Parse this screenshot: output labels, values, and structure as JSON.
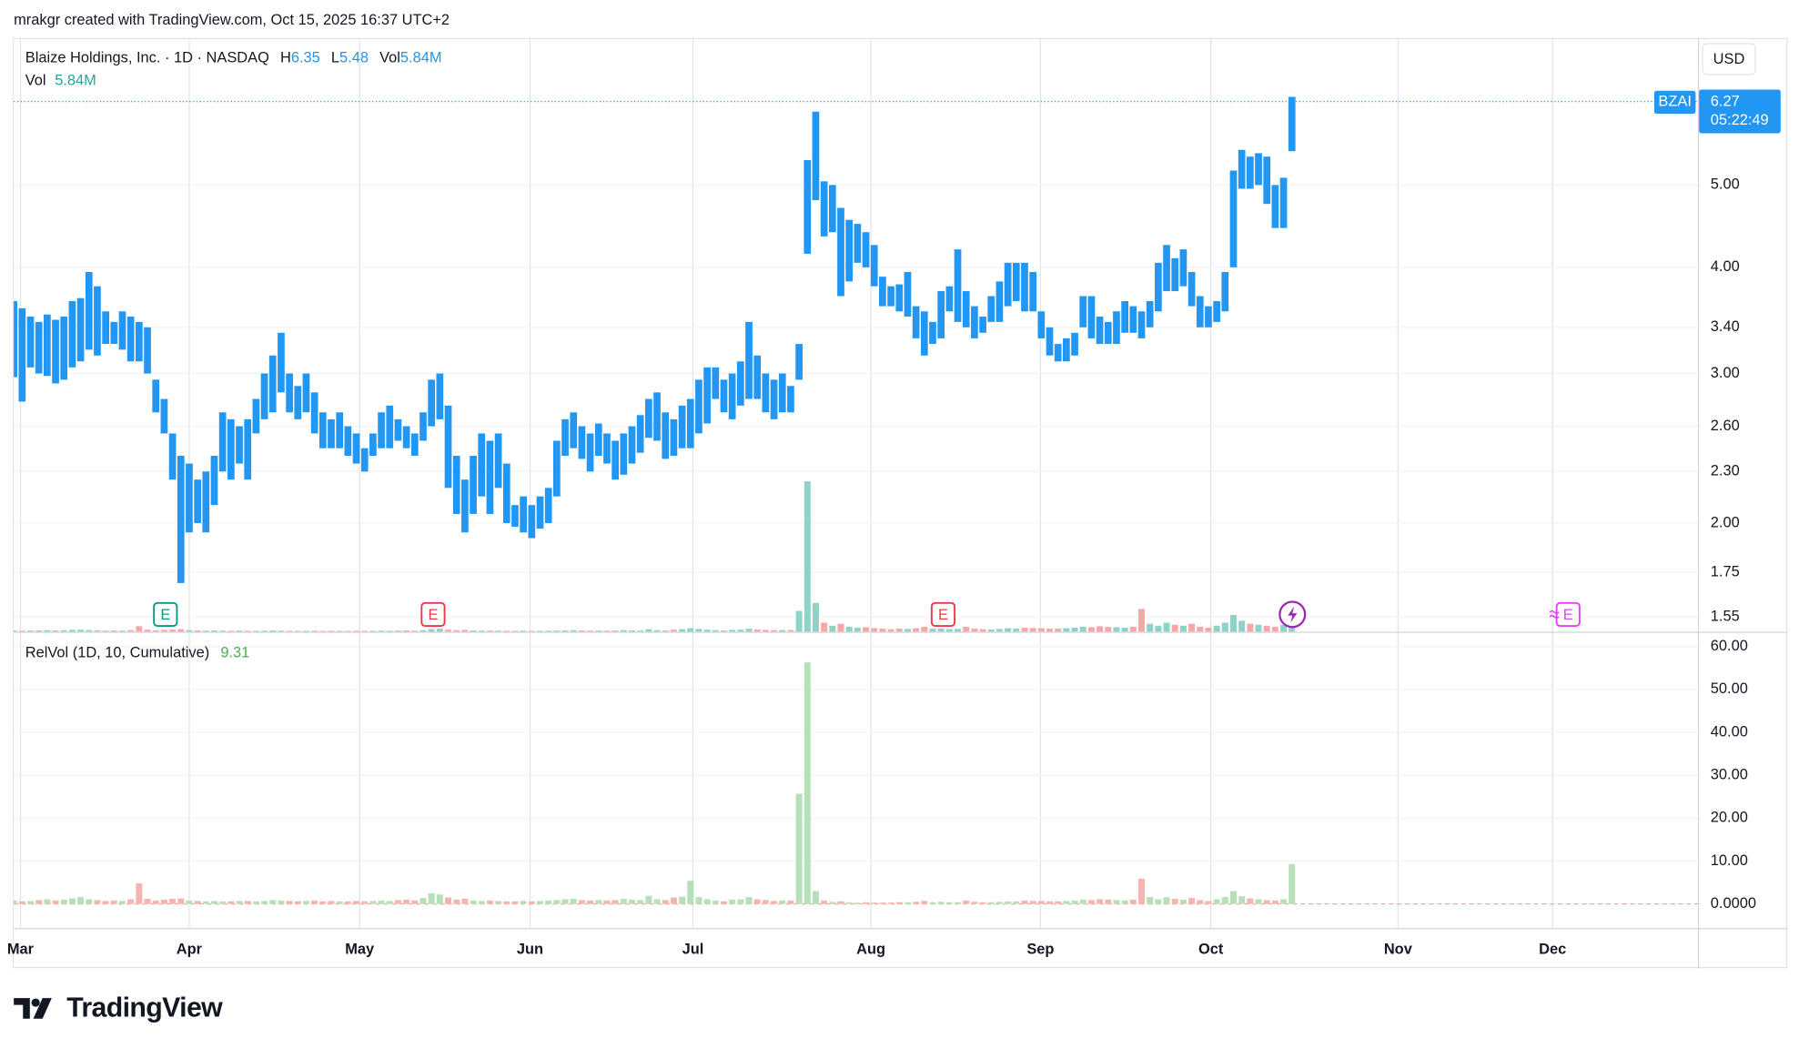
{
  "header": "mrakgr created with TradingView.com, Oct 15, 2025 16:37 UTC+2",
  "brand": "TradingView",
  "chart_data": [
    {
      "type": "range-bar",
      "title": "Blaize Holdings, Inc. · 1D · NASDAQ",
      "log_scale": true,
      "grid": true,
      "color": "#2196f3",
      "currency": "USD",
      "series": [
        {
          "name": "H",
          "values": [
            3.65,
            3.58,
            3.5,
            3.45,
            3.52,
            3.47,
            3.5,
            3.65,
            3.68,
            3.95,
            3.8,
            3.55,
            3.45,
            3.55,
            3.5,
            3.45,
            3.4,
            2.95,
            2.8,
            2.55,
            2.4,
            2.35,
            2.25,
            2.3,
            2.4,
            2.7,
            2.65,
            2.6,
            2.65,
            2.8,
            3.0,
            3.15,
            3.35,
            3.0,
            2.9,
            3.0,
            2.85,
            2.7,
            2.65,
            2.7,
            2.6,
            2.55,
            2.45,
            2.55,
            2.7,
            2.75,
            2.65,
            2.6,
            2.55,
            2.7,
            2.95,
            3.0,
            2.75,
            2.4,
            2.25,
            2.4,
            2.55,
            2.5,
            2.55,
            2.35,
            2.1,
            2.15,
            2.1,
            2.15,
            2.2,
            2.5,
            2.65,
            2.7,
            2.6,
            2.55,
            2.62,
            2.55,
            2.5,
            2.55,
            2.6,
            2.68,
            2.8,
            2.85,
            2.7,
            2.65,
            2.75,
            2.8,
            2.95,
            3.05,
            3.05,
            2.95,
            3.0,
            3.1,
            3.45,
            3.15,
            3.0,
            2.95,
            3.0,
            2.9,
            3.25,
            5.35,
            6.1,
            5.05,
            5.0,
            4.7,
            4.55,
            4.5,
            4.4,
            4.25,
            3.9,
            3.8,
            3.82,
            3.95,
            3.6,
            3.55,
            3.45,
            3.75,
            3.8,
            4.2,
            3.75,
            3.6,
            3.5,
            3.7,
            3.85,
            4.05,
            4.05,
            4.05,
            3.95,
            3.55,
            3.4,
            3.25,
            3.3,
            3.35,
            3.7,
            3.7,
            3.5,
            3.45,
            3.55,
            3.65,
            3.6,
            3.55,
            3.65,
            4.05,
            4.25,
            4.1,
            4.2,
            3.95,
            3.7,
            3.6,
            3.65,
            3.95,
            5.2,
            5.5,
            5.4,
            5.45,
            5.4,
            5.0,
            5.1,
            6.35
          ]
        },
        {
          "name": "L",
          "values": [
            2.97,
            2.78,
            3.05,
            3.0,
            2.98,
            2.92,
            2.95,
            3.05,
            3.1,
            3.2,
            3.15,
            3.25,
            3.25,
            3.2,
            3.1,
            3.1,
            3.0,
            2.7,
            2.55,
            2.25,
            1.7,
            1.95,
            2.0,
            1.95,
            2.1,
            2.3,
            2.25,
            2.35,
            2.25,
            2.55,
            2.65,
            2.7,
            2.85,
            2.7,
            2.65,
            2.7,
            2.55,
            2.45,
            2.45,
            2.45,
            2.4,
            2.35,
            2.3,
            2.4,
            2.45,
            2.45,
            2.5,
            2.45,
            2.4,
            2.5,
            2.6,
            2.65,
            2.2,
            2.05,
            1.95,
            2.05,
            2.15,
            2.05,
            2.2,
            2.0,
            1.98,
            1.95,
            1.92,
            1.97,
            2.0,
            2.15,
            2.4,
            2.45,
            2.38,
            2.3,
            2.4,
            2.35,
            2.25,
            2.28,
            2.35,
            2.42,
            2.52,
            2.5,
            2.38,
            2.4,
            2.45,
            2.45,
            2.55,
            2.62,
            2.8,
            2.7,
            2.65,
            2.75,
            2.8,
            2.8,
            2.7,
            2.65,
            2.7,
            2.7,
            2.95,
            4.15,
            4.8,
            4.35,
            4.4,
            3.7,
            3.85,
            4.05,
            4.0,
            3.8,
            3.6,
            3.6,
            3.55,
            3.5,
            3.3,
            3.15,
            3.25,
            3.3,
            3.55,
            3.45,
            3.4,
            3.3,
            3.35,
            3.45,
            3.45,
            3.6,
            3.65,
            3.55,
            3.55,
            3.3,
            3.15,
            3.1,
            3.1,
            3.15,
            3.4,
            3.3,
            3.25,
            3.25,
            3.25,
            3.35,
            3.35,
            3.3,
            3.4,
            3.55,
            3.75,
            3.75,
            3.8,
            3.6,
            3.4,
            3.4,
            3.45,
            3.55,
            4.0,
            4.95,
            4.95,
            5.0,
            4.75,
            4.45,
            4.45,
            5.48
          ]
        }
      ],
      "volume": {
        "name": "Vol",
        "unit": "M",
        "ylim": [
          0,
          600
        ],
        "up_color": "#8fd3c7",
        "down_color": "#f7a8a6",
        "values": [
          1.2,
          1.0,
          1.1,
          1.3,
          1.5,
          1.2,
          1.4,
          1.8,
          2.0,
          1.6,
          1.3,
          1.1,
          1.2,
          1.0,
          1.5,
          5.5,
          2.0,
          1.4,
          1.8,
          2.2,
          2.5,
          1.6,
          1.3,
          1.1,
          1.2,
          1.0,
          0.9,
          1.1,
          1.0,
          0.9,
          1.0,
          1.2,
          1.1,
          0.9,
          0.8,
          0.9,
          1.0,
          0.8,
          0.9,
          0.8,
          0.8,
          0.9,
          0.8,
          0.9,
          1.0,
          0.9,
          1.1,
          1.2,
          1.0,
          1.5,
          2.5,
          3.0,
          2.0,
          1.5,
          1.8,
          1.2,
          1.0,
          1.1,
          1.0,
          0.9,
          0.9,
          1.0,
          0.8,
          0.9,
          1.0,
          1.1,
          1.3,
          1.5,
          1.2,
          1.0,
          1.1,
          1.0,
          1.2,
          1.5,
          1.3,
          1.2,
          2.5,
          1.5,
          1.2,
          2.0,
          2.5,
          3.5,
          2.8,
          2.0,
          1.5,
          1.2,
          1.8,
          2.0,
          3.0,
          2.2,
          1.8,
          1.5,
          1.6,
          1.7,
          21,
          152,
          29,
          9,
          6,
          8,
          5,
          4,
          4.5,
          3.5,
          3,
          2.5,
          3,
          2.8,
          3.5,
          5,
          3,
          3.2,
          2.5,
          2.8,
          5,
          3,
          2.5,
          2.2,
          2.8,
          3.5,
          3.2,
          4,
          3.8,
          3.5,
          3,
          3.2,
          3.5,
          4,
          5,
          4.5,
          5.5,
          4.8,
          4.5,
          4,
          5,
          23,
          8,
          6,
          9,
          7,
          6,
          8,
          5,
          4,
          6,
          9,
          17,
          11,
          8,
          7,
          6,
          5,
          7,
          5.84
        ]
      },
      "xlim": [
        0,
        201.6
      ],
      "xticks": [
        {
          "value": 0.8,
          "label": "Mar"
        },
        {
          "value": 21.0,
          "label": "Apr"
        },
        {
          "value": 41.4,
          "label": "May"
        },
        {
          "value": 61.8,
          "label": "Jun"
        },
        {
          "value": 81.3,
          "label": "Jul"
        },
        {
          "value": 102.6,
          "label": "Aug"
        },
        {
          "value": 122.9,
          "label": "Sep"
        },
        {
          "value": 143.3,
          "label": "Oct"
        },
        {
          "value": 165.7,
          "label": "Nov"
        },
        {
          "value": 184.2,
          "label": "Dec"
        }
      ],
      "ylim": [
        1.49,
        7.45
      ],
      "yticks": [
        {
          "value": 5,
          "label": "5.00"
        },
        {
          "value": 4,
          "label": "4.00"
        },
        {
          "value": 3.4,
          "label": "3.40"
        },
        {
          "value": 3,
          "label": "3.00"
        },
        {
          "value": 2.6,
          "label": "2.60"
        },
        {
          "value": 2.3,
          "label": "2.30"
        },
        {
          "value": 2,
          "label": "2.00"
        },
        1.75,
        1.55
      ],
      "last_price": {
        "symbol": "BZAI",
        "value": 6.27,
        "countdown": "05:22:49"
      },
      "events": [
        {
          "label": "E",
          "color": "#089981"
        },
        {
          "label": "E",
          "color": "#f23645"
        },
        {
          "label": "E",
          "color": "#f23645"
        },
        {
          "label": "E",
          "color": "#e040fb"
        }
      ]
    },
    {
      "type": "bar",
      "title": "RelVol (1D, 10, Cumulative)",
      "up_color": "#b5e0b8",
      "down_color": "#f4b4b2",
      "values": [
        0.8,
        0.6,
        0.7,
        0.9,
        1.1,
        0.8,
        1.0,
        1.3,
        1.6,
        1.1,
        0.9,
        0.7,
        0.8,
        0.7,
        1.1,
        4.8,
        1.2,
        0.8,
        1.0,
        1.2,
        1.3,
        0.8,
        0.7,
        0.6,
        0.7,
        0.6,
        0.6,
        0.7,
        0.7,
        0.6,
        0.7,
        0.9,
        0.8,
        0.7,
        0.6,
        0.7,
        0.8,
        0.6,
        0.7,
        0.6,
        0.6,
        0.7,
        0.6,
        0.7,
        0.8,
        0.7,
        0.9,
        1.0,
        0.8,
        1.4,
        2.5,
        2.2,
        1.5,
        1.0,
        1.2,
        0.8,
        0.7,
        0.8,
        0.7,
        0.6,
        0.6,
        0.7,
        0.6,
        0.7,
        0.8,
        0.9,
        1.1,
        1.2,
        0.9,
        0.8,
        0.9,
        0.8,
        0.9,
        1.2,
        1.0,
        0.9,
        1.9,
        1.1,
        0.9,
        1.5,
        1.7,
        5.4,
        1.6,
        1.1,
        0.8,
        0.6,
        1.0,
        1.1,
        1.6,
        1.1,
        0.9,
        0.7,
        0.8,
        0.8,
        25.7,
        56.3,
        3.0,
        0.8,
        0.5,
        0.6,
        0.4,
        0.3,
        0.4,
        0.3,
        0.3,
        0.3,
        0.4,
        0.4,
        0.5,
        0.7,
        0.4,
        0.5,
        0.4,
        0.4,
        0.8,
        0.5,
        0.4,
        0.4,
        0.5,
        0.6,
        0.6,
        0.8,
        0.7,
        0.7,
        0.6,
        0.6,
        0.7,
        0.8,
        1.0,
        0.9,
        1.1,
        1.0,
        0.9,
        0.8,
        1.0,
        5.9,
        1.6,
        1.1,
        1.6,
        1.2,
        1.0,
        1.4,
        0.9,
        0.7,
        1.1,
        1.6,
        3.0,
        1.8,
        1.3,
        1.1,
        0.9,
        0.8,
        1.1,
        9.31
      ],
      "ylim": [
        -5.6,
        61.6
      ],
      "yticks": [
        {
          "value": 60,
          "label": "60.00"
        },
        {
          "value": 50,
          "label": "50.00"
        },
        {
          "value": 40,
          "label": "40.00"
        },
        {
          "value": 30,
          "label": "30.00"
        },
        {
          "value": 20,
          "label": "20.00"
        },
        {
          "value": 10,
          "label": "10.00"
        },
        {
          "value": 0,
          "label": "0.0000"
        }
      ]
    }
  ]
}
